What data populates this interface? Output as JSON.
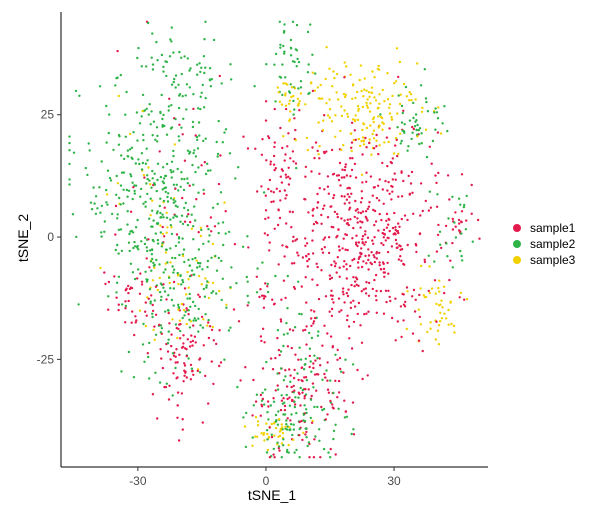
{
  "chart_data": {
    "type": "scatter",
    "title": "",
    "xlabel": "tSNE_1",
    "ylabel": "tSNE_2",
    "xlim": [
      -48,
      52
    ],
    "ylim": [
      -47,
      46
    ],
    "x_ticks": [
      -30,
      0,
      30
    ],
    "y_ticks": [
      -25,
      0,
      25
    ],
    "x_tick_labels": [
      "-30",
      "0",
      "30"
    ],
    "y_tick_labels": [
      "-25",
      "0",
      "25"
    ],
    "grid": false,
    "legend_position": "right",
    "series": [
      {
        "name": "sample1",
        "color": "#e31a4c",
        "clusters": [
          {
            "cx": 22,
            "cy": 0,
            "sx": 9,
            "sy": 11,
            "n": 520
          },
          {
            "cx": 8,
            "cy": -32,
            "sx": 6,
            "sy": 7,
            "n": 150
          },
          {
            "cx": -19,
            "cy": -25,
            "sx": 4,
            "sy": 5,
            "n": 90
          },
          {
            "cx": 3,
            "cy": 12,
            "sx": 3,
            "sy": 8,
            "n": 70
          },
          {
            "cx": -30,
            "cy": -13,
            "sx": 4,
            "sy": 4,
            "n": 40
          },
          {
            "cx": -20,
            "cy": 8,
            "sx": 7,
            "sy": 14,
            "n": 60
          },
          {
            "cx": 45,
            "cy": 3,
            "sx": 3,
            "sy": 3,
            "n": 18
          },
          {
            "cx": -1,
            "cy": -11,
            "sx": 2,
            "sy": 2,
            "n": 10
          }
        ]
      },
      {
        "name": "sample2",
        "color": "#2eb347",
        "clusters": [
          {
            "cx": -25,
            "cy": 10,
            "sx": 9,
            "sy": 12,
            "n": 380
          },
          {
            "cx": -21,
            "cy": -12,
            "sx": 6,
            "sy": 9,
            "n": 140
          },
          {
            "cx": 7,
            "cy": -38,
            "sx": 6,
            "sy": 4,
            "n": 90
          },
          {
            "cx": 36,
            "cy": 24,
            "sx": 3,
            "sy": 4,
            "n": 50
          },
          {
            "cx": 6,
            "cy": 35,
            "sx": 3,
            "sy": 5,
            "n": 50
          },
          {
            "cx": -18,
            "cy": 33,
            "sx": 4,
            "sy": 3,
            "n": 40
          },
          {
            "cx": 44,
            "cy": 1,
            "sx": 3,
            "sy": 5,
            "n": 25
          },
          {
            "cx": 8,
            "cy": -26,
            "sx": 6,
            "sy": 7,
            "n": 60
          },
          {
            "cx": -1,
            "cy": -10,
            "sx": 3,
            "sy": 3,
            "n": 12
          }
        ]
      },
      {
        "name": "sample3",
        "color": "#f2d100",
        "clusters": [
          {
            "cx": 22,
            "cy": 27,
            "sx": 7,
            "sy": 5,
            "n": 170
          },
          {
            "cx": 1,
            "cy": -40,
            "sx": 3,
            "sy": 2,
            "n": 40
          },
          {
            "cx": 39,
            "cy": -15,
            "sx": 4,
            "sy": 4,
            "n": 45
          },
          {
            "cx": -19,
            "cy": -12,
            "sx": 5,
            "sy": 6,
            "n": 45
          },
          {
            "cx": 8,
            "cy": 28,
            "sx": 3,
            "sy": 3,
            "n": 25
          },
          {
            "cx": -25,
            "cy": 5,
            "sx": 6,
            "sy": 8,
            "n": 30
          }
        ]
      }
    ]
  }
}
